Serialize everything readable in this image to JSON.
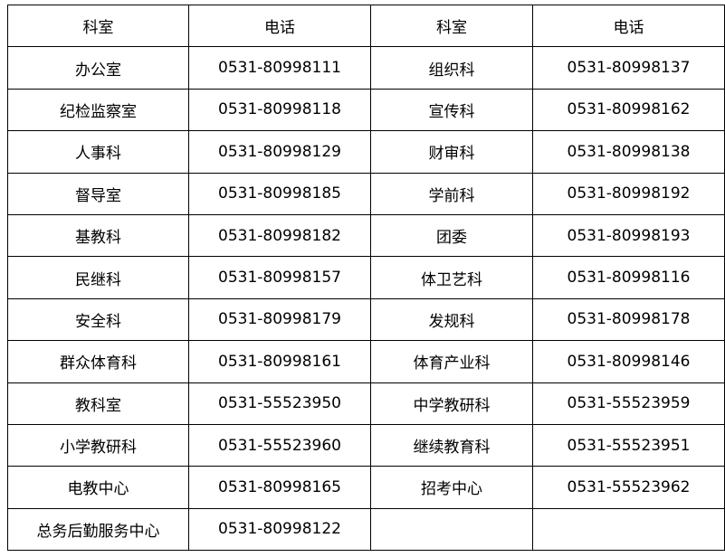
{
  "table": {
    "headers": [
      "科室",
      "电话",
      "科室",
      "电话"
    ],
    "rows": [
      [
        "办公室",
        "0531-80998111",
        "组织科",
        "0531-80998137"
      ],
      [
        "纪检监察室",
        "0531-80998118",
        "宣传科",
        "0531-80998162"
      ],
      [
        "人事科",
        "0531-80998129",
        "财审科",
        "0531-80998138"
      ],
      [
        "督导室",
        "0531-80998185",
        "学前科",
        "0531-80998192"
      ],
      [
        "基教科",
        "0531-80998182",
        "团委",
        "0531-80998193"
      ],
      [
        "民继科",
        "0531-80998157",
        "体卫艺科",
        "0531-80998116"
      ],
      [
        "安全科",
        "0531-80998179",
        "发规科",
        "0531-80998178"
      ],
      [
        "群众体育科",
        "0531-80998161",
        "体育产业科",
        "0531-80998146"
      ],
      [
        "教科室",
        "0531-55523950",
        "中学教研科",
        "0531-55523959"
      ],
      [
        "小学教研科",
        "0531-55523960",
        "继续教育科",
        "0531-55523951"
      ],
      [
        "电教中心",
        "0531-80998165",
        "招考中心",
        "0531-55523962"
      ],
      [
        "总务后勤服务中心",
        "0531-80998122",
        "",
        ""
      ]
    ]
  }
}
